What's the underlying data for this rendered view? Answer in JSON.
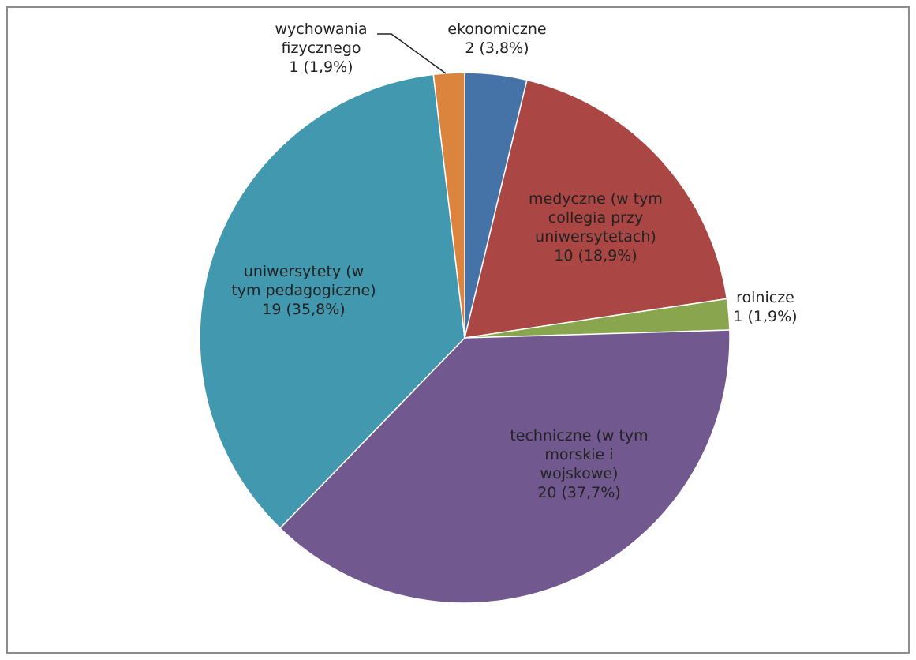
{
  "chart_data": {
    "type": "pie",
    "title": "",
    "start_angle_deg": 0,
    "direction": "clockwise",
    "slices": [
      {
        "category": "ekonomiczne",
        "lines": [
          "ekonomiczne",
          "2 (3,8%)"
        ],
        "value": 2,
        "percent": 3.8,
        "color": "#4573a7"
      },
      {
        "category": "medyczne (w tym collegia przy uniwersytetach)",
        "lines": [
          "medyczne (w tym",
          "collegia przy",
          "uniwersytetach)",
          "10 (18,9%)"
        ],
        "value": 10,
        "percent": 18.9,
        "color": "#aa4643"
      },
      {
        "category": "rolnicze",
        "lines": [
          "rolnicze",
          "1 (1,9%)"
        ],
        "value": 1,
        "percent": 1.9,
        "color": "#89a54e"
      },
      {
        "category": "techniczne (w tym morskie i wojskowe)",
        "lines": [
          "techniczne (w tym",
          "morskie i",
          "wojskowe)",
          "20 (37,7%)"
        ],
        "value": 20,
        "percent": 37.7,
        "color": "#71588f"
      },
      {
        "category": "uniwersytety (w tym pedagogiczne)",
        "lines": [
          "uniwersytety (w",
          "tym pedagogiczne)",
          "19 (35,8%)"
        ],
        "value": 19,
        "percent": 35.8,
        "color": "#4198af"
      },
      {
        "category": "wychowania fizycznego",
        "lines": [
          "wychowania",
          "fizycznego",
          "1 (1,9%)"
        ],
        "value": 1,
        "percent": 1.9,
        "color": "#db843d"
      }
    ]
  }
}
